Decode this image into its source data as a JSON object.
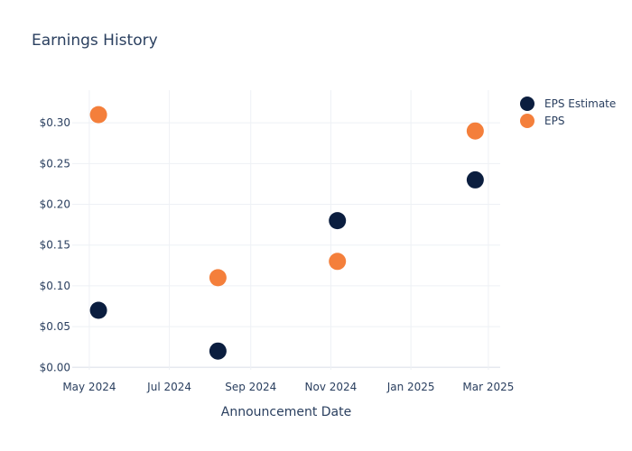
{
  "chart_data": {
    "type": "scatter",
    "title": "Earnings History",
    "xlabel": "Announcement Date",
    "ylabel": "",
    "x_ticks": [
      {
        "date": "2024-05-01",
        "label": "May 2024"
      },
      {
        "date": "2024-07-01",
        "label": "Jul 2024"
      },
      {
        "date": "2024-09-01",
        "label": "Sep 2024"
      },
      {
        "date": "2024-11-01",
        "label": "Nov 2024"
      },
      {
        "date": "2025-01-01",
        "label": "Jan 2025"
      },
      {
        "date": "2025-03-01",
        "label": "Mar 2025"
      }
    ],
    "y_ticks": [
      {
        "value": 0.0,
        "label": "$0.00"
      },
      {
        "value": 0.05,
        "label": "$0.05"
      },
      {
        "value": 0.1,
        "label": "$0.10"
      },
      {
        "value": 0.15,
        "label": "$0.15"
      },
      {
        "value": 0.2,
        "label": "$0.20"
      },
      {
        "value": 0.25,
        "label": "$0.25"
      },
      {
        "value": 0.3,
        "label": "$0.30"
      }
    ],
    "xlim": [
      "2024-04-18",
      "2025-03-10"
    ],
    "ylim": [
      -0.003,
      0.34
    ],
    "grid": true,
    "legend_position": "top-right",
    "series": [
      {
        "name": "EPS Estimate",
        "color": "#0b1e3f",
        "points": [
          {
            "x": "2024-05-08",
            "y": 0.07
          },
          {
            "x": "2024-08-07",
            "y": 0.02
          },
          {
            "x": "2024-11-06",
            "y": 0.18
          },
          {
            "x": "2025-02-19",
            "y": 0.23
          }
        ]
      },
      {
        "name": "EPS",
        "color": "#f47f3b",
        "points": [
          {
            "x": "2024-05-08",
            "y": 0.31
          },
          {
            "x": "2024-08-07",
            "y": 0.11
          },
          {
            "x": "2024-11-06",
            "y": 0.13
          },
          {
            "x": "2025-02-19",
            "y": 0.29
          }
        ]
      }
    ]
  }
}
